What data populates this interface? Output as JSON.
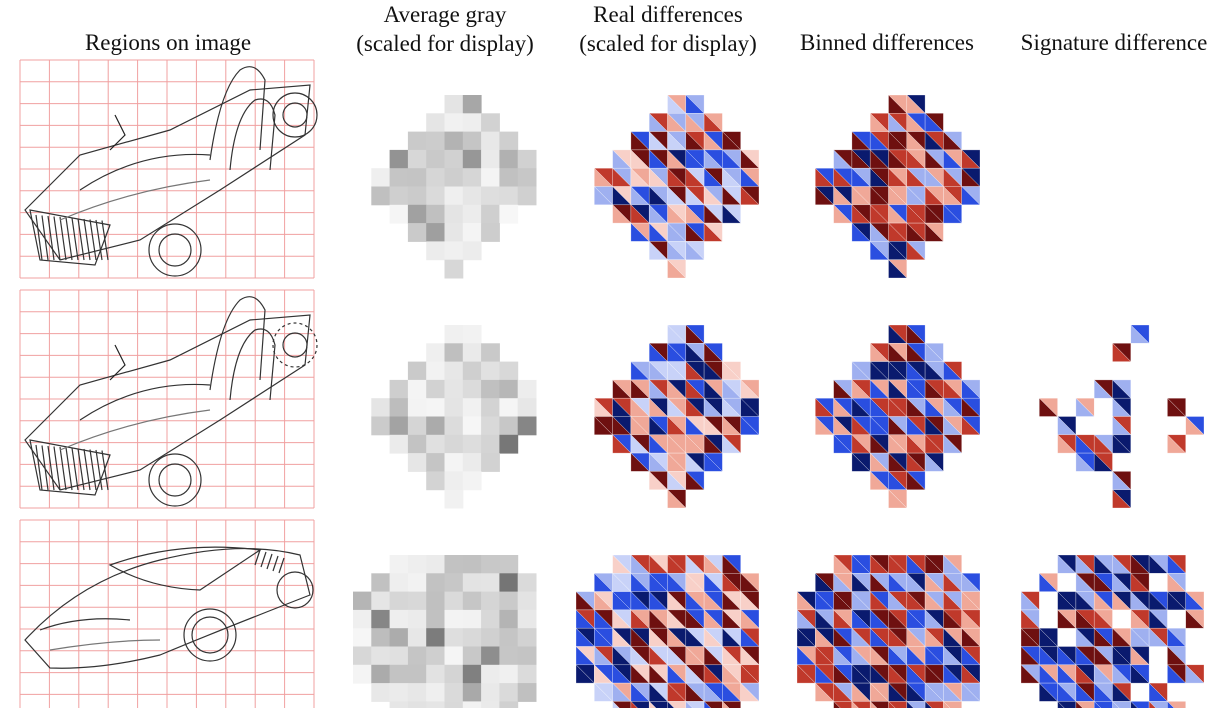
{
  "headers": {
    "regions": "Regions on image",
    "average_gray": [
      "Average gray",
      "(scaled for display)"
    ],
    "real_differences": [
      "Real differences",
      "(scaled for display)"
    ],
    "binned_differences": "Binned differences",
    "signature_difference": "Signature difference"
  },
  "rows": [
    {
      "name": "sketch-open-three-wheeler",
      "panels": [
        "regions",
        "average-gray",
        "real-differences",
        "binned-differences"
      ]
    },
    {
      "name": "sketch-open-three-wheeler-variant",
      "panels": [
        "regions",
        "average-gray",
        "real-differences",
        "binned-differences",
        "signature-difference"
      ]
    },
    {
      "name": "sketch-sports-coupe",
      "panels": [
        "regions",
        "average-gray",
        "real-differences",
        "binned-differences",
        "signature-difference"
      ]
    }
  ],
  "colors": {
    "grid_line": "#f0a0a0",
    "sketch_line": "#333333",
    "positive_high": "#0a1a6e",
    "positive_mid": "#2a4ee0",
    "positive_low": "#9fb0f0",
    "negative_high": "#6e1010",
    "negative_mid": "#c0392b",
    "negative_low": "#f0a898"
  },
  "grid": {
    "cells": 10
  }
}
